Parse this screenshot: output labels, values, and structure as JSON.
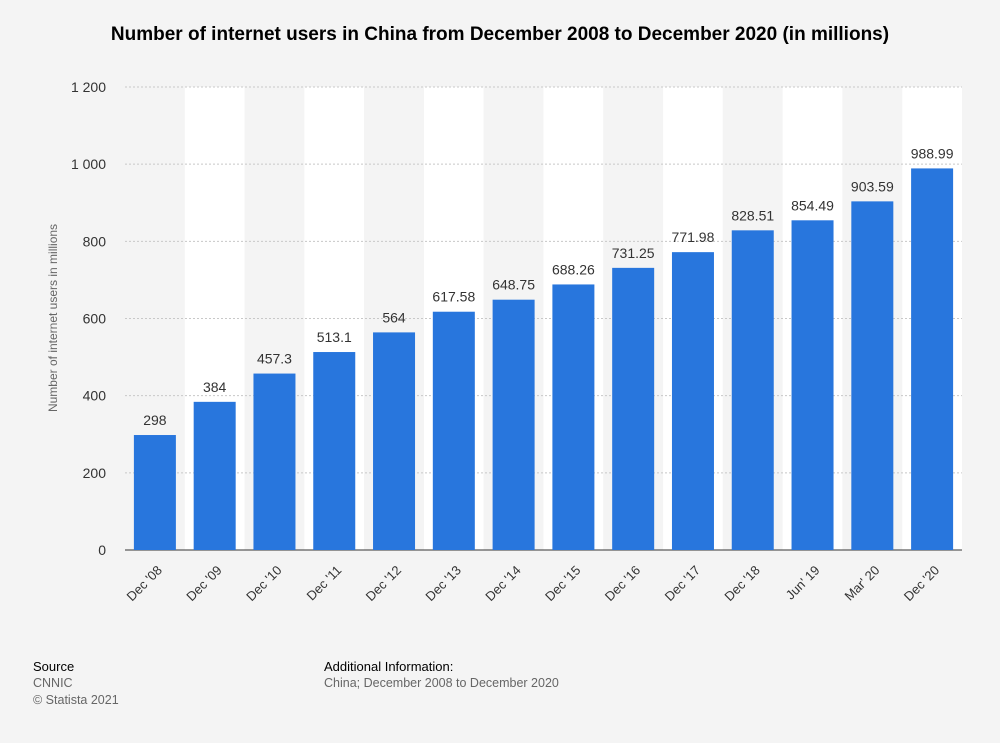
{
  "chart_data": {
    "type": "bar",
    "title": "Number of internet users in China from December 2008 to December 2020 (in millions)",
    "ylabel": "Number of internet users in millions",
    "xlabel": "",
    "categories": [
      "Dec '08",
      "Dec '09",
      "Dec '10",
      "Dec '11",
      "Dec '12",
      "Dec '13",
      "Dec '14",
      "Dec '15",
      "Dec '16",
      "Dec '17",
      "Dec '18",
      "Jun' 19",
      "Mar' 20",
      "Dec '20"
    ],
    "values": [
      298,
      384,
      457.3,
      513.1,
      564,
      617.58,
      648.75,
      688.26,
      731.25,
      771.98,
      828.51,
      854.49,
      903.59,
      988.99
    ],
    "value_labels": [
      "298",
      "384",
      "457.3",
      "513.1",
      "564",
      "617.58",
      "648.75",
      "688.26",
      "731.25",
      "771.98",
      "828.51",
      "854.49",
      "903.59",
      "988.99"
    ],
    "ylim": [
      0,
      1200
    ],
    "yticks": [
      0,
      200,
      400,
      600,
      800,
      1000,
      1200
    ],
    "ytick_labels": [
      "0",
      "200",
      "400",
      "600",
      "800",
      "1 000",
      "1 200"
    ],
    "grid": true,
    "bar_color": "#2876dd"
  },
  "footer": {
    "source_heading": "Source",
    "source_name": "CNNIC",
    "copyright": "© Statista 2021",
    "additional_heading": "Additional Information:",
    "additional_text": "China; December 2008 to December 2020"
  }
}
